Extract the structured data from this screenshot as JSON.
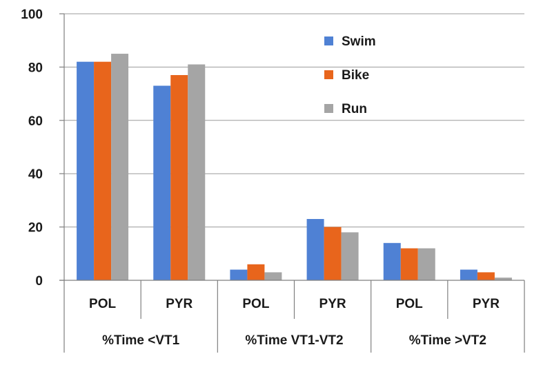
{
  "chart_data": {
    "type": "bar",
    "groups": [
      {
        "label": "%Time <VT1",
        "categories": [
          "POL",
          "PYR"
        ]
      },
      {
        "label": "%Time VT1-VT2",
        "categories": [
          "POL",
          "PYR"
        ]
      },
      {
        "label": "%Time >VT2",
        "categories": [
          "POL",
          "PYR"
        ]
      }
    ],
    "categories": [
      "POL",
      "PYR",
      "POL",
      "PYR",
      "POL",
      "PYR"
    ],
    "series": [
      {
        "name": "Swim",
        "color": "#4f81d4",
        "values": [
          82,
          73,
          4,
          23,
          14,
          4
        ]
      },
      {
        "name": "Bike",
        "color": "#e8651c",
        "values": [
          82,
          77,
          6,
          20,
          12,
          3
        ]
      },
      {
        "name": "Run",
        "color": "#a5a5a5",
        "values": [
          85,
          81,
          3,
          18,
          12,
          1
        ]
      }
    ],
    "title": "",
    "xlabel": "",
    "ylabel": "",
    "ylim": [
      0,
      100
    ],
    "yticks": [
      0,
      20,
      40,
      60,
      80,
      100
    ],
    "grid": true,
    "legend_position": "top-right"
  }
}
